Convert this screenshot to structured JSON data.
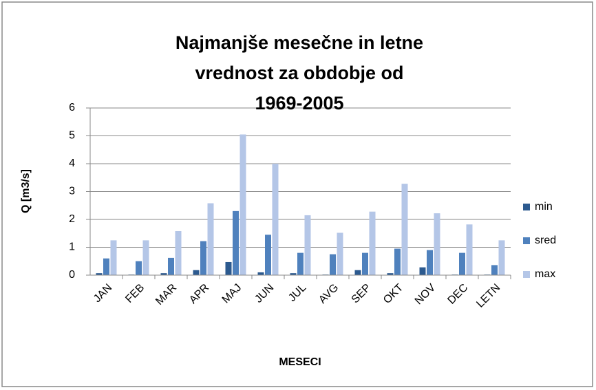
{
  "chart_data": {
    "type": "bar",
    "title": "Najmanjše mesečne in letne vrednost za obdobje od 1969-2005",
    "x_label": "MESECI",
    "y_label": "Q [m3/s]",
    "categories": [
      "JAN",
      "FEB",
      "MAR",
      "APR",
      "MAJ",
      "JUN",
      "JUL",
      "AVG",
      "SEP",
      "OKT",
      "NOV",
      "DEC",
      "LETN"
    ],
    "series": [
      {
        "name": "min",
        "color": "#2c5a8f",
        "values": [
          0.07,
          0.02,
          0.07,
          0.18,
          0.47,
          0.1,
          0.07,
          0.02,
          0.18,
          0.07,
          0.28,
          0.02,
          0.02
        ]
      },
      {
        "name": "sred",
        "color": "#4f81bd",
        "values": [
          0.6,
          0.5,
          0.62,
          1.22,
          2.3,
          1.45,
          0.8,
          0.75,
          0.8,
          0.95,
          0.9,
          0.8,
          0.36
        ]
      },
      {
        "name": "max",
        "color": "#b4c6e7",
        "values": [
          1.25,
          1.25,
          1.58,
          2.58,
          5.05,
          4.0,
          2.15,
          1.52,
          2.28,
          3.28,
          2.22,
          1.82,
          1.25
        ]
      }
    ],
    "ylim": [
      0,
      6
    ],
    "yticks": [
      0,
      1,
      2,
      3,
      4,
      5,
      6
    ],
    "grid": true,
    "legend": "right"
  }
}
